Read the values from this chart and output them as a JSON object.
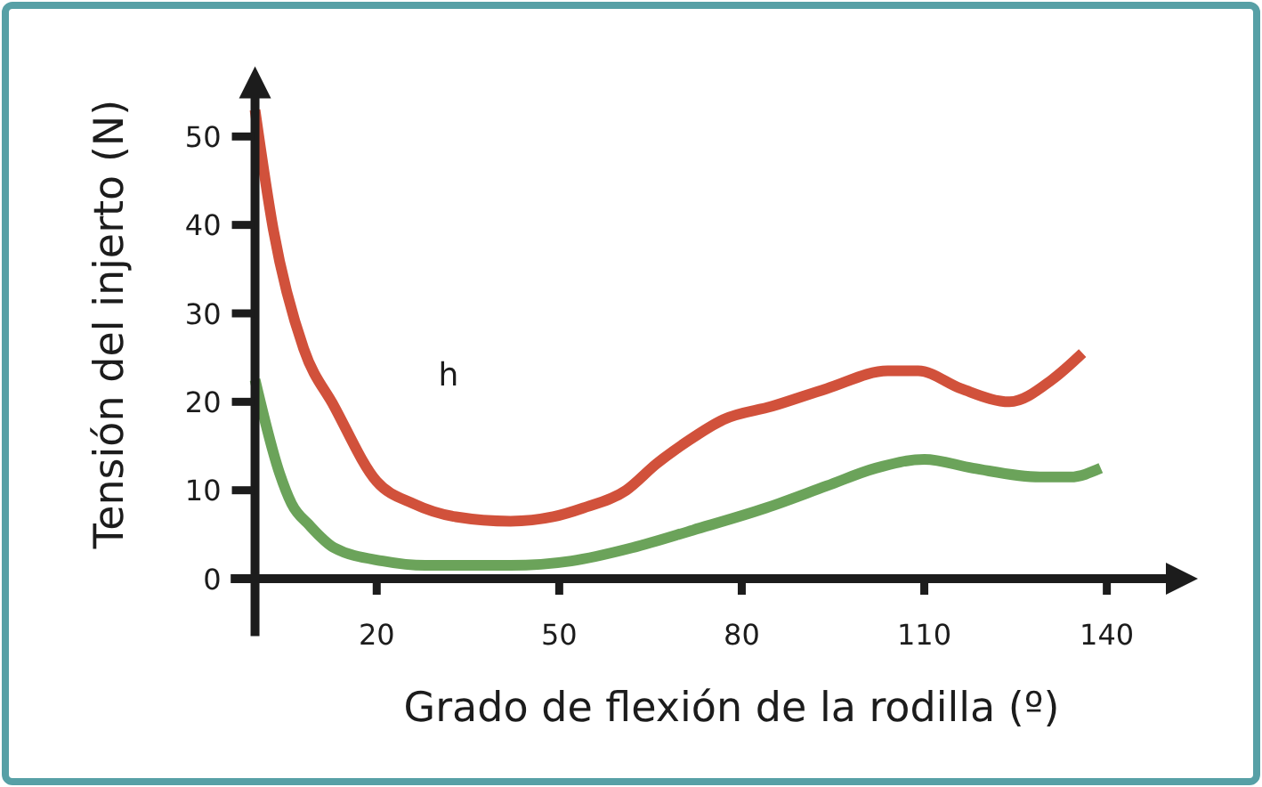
{
  "chart_data": {
    "type": "line",
    "xlabel": "Grado de flexión de la rodilla (º)",
    "ylabel": "Tensión del injerto (N)",
    "xlim": [
      -4,
      150
    ],
    "xticks": [
      20,
      50,
      80,
      110,
      140
    ],
    "ylim": [
      -6.5,
      54.5
    ],
    "yticks": [
      0,
      10,
      20,
      30,
      40,
      50
    ],
    "annotations": [
      "h"
    ],
    "series": [
      {
        "color": "#d1513b",
        "x": [
          0,
          3,
          8,
          13,
          20,
          26,
          33,
          42,
          49,
          54,
          61,
          66,
          71,
          77,
          85,
          94,
          104,
          109,
          116,
          124,
          131,
          136
        ],
        "values": [
          53,
          39.5,
          26,
          19.5,
          11,
          8.5,
          7,
          6.5,
          7,
          8,
          10,
          13,
          15.5,
          18,
          19.5,
          21.5,
          23.5,
          23.5,
          21.5,
          20,
          22.5,
          25.5
        ]
      },
      {
        "color": "#6ba35a",
        "x": [
          0,
          4,
          6,
          9,
          13,
          21,
          28,
          42,
          52,
          62,
          72,
          84,
          94,
          102,
          110,
          118,
          129,
          134,
          139
        ],
        "values": [
          22.5,
          12,
          8.5,
          6,
          3.5,
          2,
          1.5,
          1.5,
          2,
          3.5,
          5.5,
          8,
          10.5,
          12.5,
          13.5,
          12.5,
          11.5,
          11.5,
          12.5
        ]
      }
    ]
  }
}
